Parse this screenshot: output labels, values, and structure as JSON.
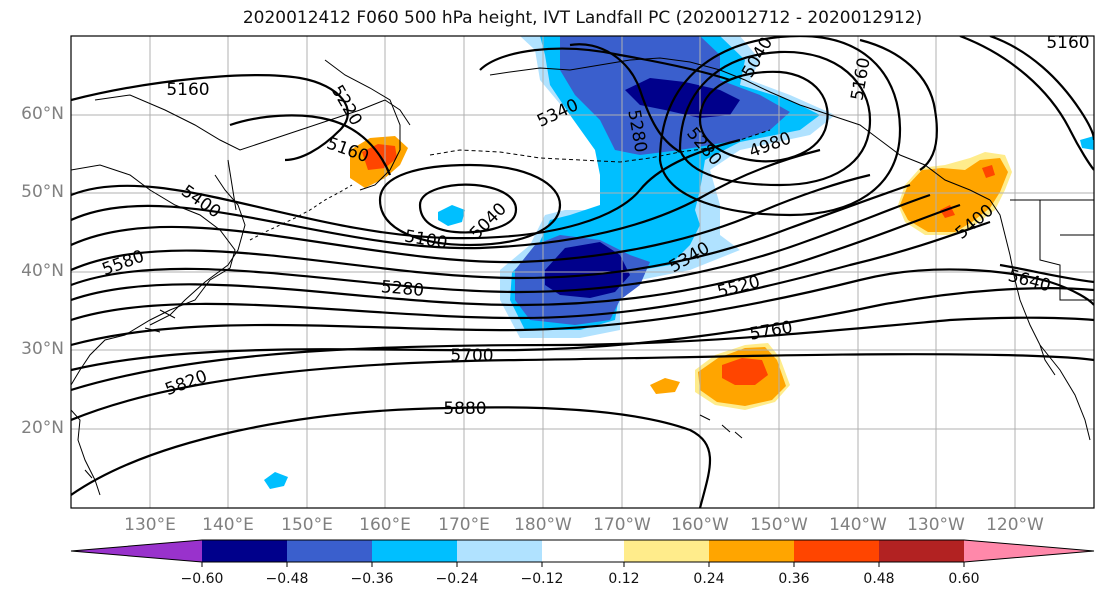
{
  "title": "2020012412 F060 500 hPa height, IVT Landfall PC (2020012712 - 2020012912)",
  "map": {
    "projection": "PlateCarree",
    "lon_range": [
      120,
      -110
    ],
    "lat_range": [
      10,
      70
    ],
    "lat_ticks": [
      "60°N",
      "50°N",
      "40°N",
      "30°N",
      "20°N"
    ],
    "lon_ticks": [
      "130°E",
      "140°E",
      "150°E",
      "160°E",
      "170°E",
      "180°W",
      "170°W",
      "160°W",
      "150°W",
      "140°W",
      "130°W",
      "120°W"
    ],
    "grid": true,
    "coastlines": true,
    "borders": true
  },
  "height_contours": {
    "variable": "500 hPa height",
    "labels": [
      "5160",
      "5220",
      "5160",
      "5400",
      "5580",
      "5100",
      "5040",
      "5280",
      "5340",
      "5280",
      "5040",
      "5160",
      "4980",
      "5280",
      "5340",
      "5520",
      "5700",
      "5760",
      "5640",
      "5400",
      "5820",
      "5880",
      "5160"
    ]
  },
  "colorbar": {
    "variable": "IVT Landfall PC",
    "extend": "both",
    "tick_labels": [
      "−0.60",
      "−0.48",
      "−0.36",
      "−0.24",
      "−0.12",
      "0.12",
      "0.24",
      "0.36",
      "0.48",
      "0.60"
    ],
    "colors": [
      "#9932cc",
      "#00008b",
      "#3a5fcd",
      "#00bfff",
      "#b0e2ff",
      "#ffffff",
      "#ffec8b",
      "#ffa500",
      "#ff4500",
      "#b22222",
      "#ff88aa"
    ]
  },
  "shading_colors": {
    "neg_1": "#b0e2ff",
    "neg_2": "#00bfff",
    "neg_3": "#3a5fcd",
    "neg_4": "#00008b",
    "pos_1": "#ffec8b",
    "pos_2": "#ffa500",
    "pos_3": "#ff4500"
  }
}
